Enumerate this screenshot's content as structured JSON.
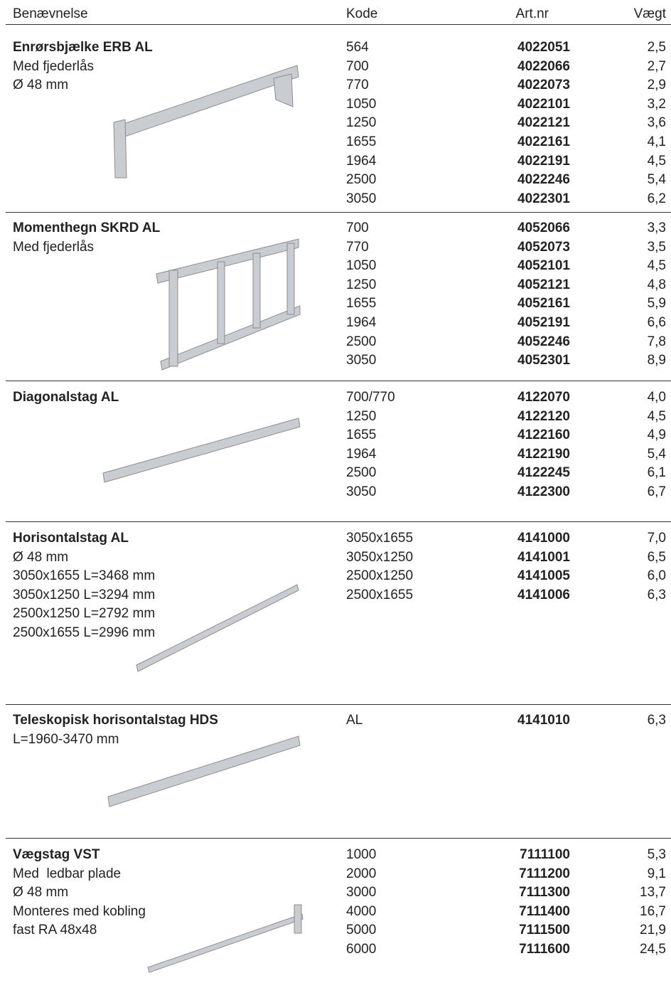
{
  "header": {
    "columns": [
      "Benævnelse",
      "Kode",
      "Art.nr",
      "Vægt"
    ]
  },
  "sections": [
    {
      "name": "Enrørsbjælke ERB AL",
      "description": [
        "Med fjederlås",
        "Ø 48 mm"
      ],
      "rows": [
        [
          "564",
          "4022051",
          "2,5"
        ],
        [
          "700",
          "4022066",
          "2,7"
        ],
        [
          "770",
          "4022073",
          "2,9"
        ],
        [
          "1050",
          "4022101",
          "3,2"
        ],
        [
          "1250",
          "4022121",
          "3,6"
        ],
        [
          "1655",
          "4022161",
          "4,1"
        ],
        [
          "1964",
          "4022191",
          "4,5"
        ],
        [
          "2500",
          "4022246",
          "5,4"
        ],
        [
          "3050",
          "4022301",
          "6,2"
        ]
      ]
    },
    {
      "name": "Momenthegn SKRD AL",
      "description": [
        "Med fjederlås"
      ],
      "rows": [
        [
          "700",
          "4052066",
          "3,3"
        ],
        [
          "770",
          "4052073",
          "3,5"
        ],
        [
          "1050",
          "4052101",
          "4,5"
        ],
        [
          "1250",
          "4052121",
          "4,8"
        ],
        [
          "1655",
          "4052161",
          "5,9"
        ],
        [
          "1964",
          "4052191",
          "6,6"
        ],
        [
          "2500",
          "4052246",
          "7,8"
        ],
        [
          "3050",
          "4052301",
          "8,9"
        ]
      ]
    },
    {
      "name": "Diagonalstag AL",
      "description": [],
      "rows": [
        [
          "700/770",
          "4122070",
          "4,0"
        ],
        [
          "1250",
          "4122120",
          "4,5"
        ],
        [
          "1655",
          "4122160",
          "4,9"
        ],
        [
          "1964",
          "4122190",
          "5,4"
        ],
        [
          "2500",
          "4122245",
          "6,1"
        ],
        [
          "3050",
          "4122300",
          "6,7"
        ]
      ]
    },
    {
      "name": "Horisontalstag AL",
      "description": [
        "Ø 48 mm",
        "3050x1655 L=3468 mm",
        "3050x1250 L=3294 mm",
        "2500x1250 L=2792 mm",
        "2500x1655 L=2996 mm"
      ],
      "rows": [
        [
          "3050x1655",
          "4141000",
          "7,0"
        ],
        [
          "3050x1250",
          "4141001",
          "6,5"
        ],
        [
          "2500x1250",
          "4141005",
          "6,0"
        ],
        [
          "2500x1655",
          "4141006",
          "6,3"
        ]
      ]
    },
    {
      "name": "Teleskopisk horisontalstag HDS",
      "description": [
        "L=1960-3470 mm"
      ],
      "rows": [
        [
          "AL",
          "4141010",
          "6,3"
        ]
      ]
    },
    {
      "name": "Vægstag VST",
      "description": [
        "Med  ledbar plade",
        "Ø 48 mm",
        "Monteres med kobling",
        "fast RA 48x48"
      ],
      "rows": [
        [
          "1000",
          "7111100",
          "5,3"
        ],
        [
          "2000",
          "7111200",
          "9,1"
        ],
        [
          "3000",
          "7111300",
          "13,7"
        ],
        [
          "4000",
          "7111400",
          "16,7"
        ],
        [
          "5000",
          "7111500",
          "21,9"
        ],
        [
          "6000",
          "7111600",
          "24,5"
        ]
      ]
    }
  ]
}
